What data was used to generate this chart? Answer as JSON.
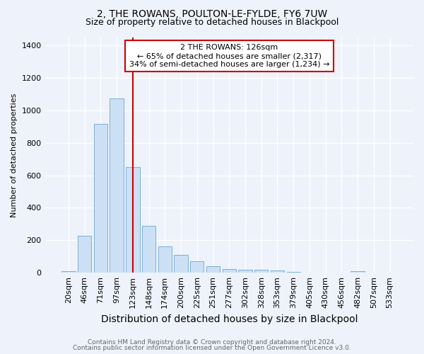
{
  "title1": "2, THE ROWANS, POULTON-LE-FYLDE, FY6 7UW",
  "title2": "Size of property relative to detached houses in Blackpool",
  "xlabel": "Distribution of detached houses by size in Blackpool",
  "ylabel": "Number of detached properties",
  "footer1": "Contains HM Land Registry data © Crown copyright and database right 2024.",
  "footer2": "Contains public sector information licensed under the Open Government Licence v3.0.",
  "categories": [
    "20sqm",
    "46sqm",
    "71sqm",
    "97sqm",
    "123sqm",
    "148sqm",
    "174sqm",
    "200sqm",
    "225sqm",
    "251sqm",
    "277sqm",
    "302sqm",
    "328sqm",
    "353sqm",
    "379sqm",
    "405sqm",
    "430sqm",
    "456sqm",
    "482sqm",
    "507sqm",
    "533sqm"
  ],
  "values": [
    10,
    228,
    915,
    1075,
    650,
    290,
    160,
    108,
    70,
    40,
    22,
    18,
    18,
    12,
    5,
    2,
    1,
    1,
    8,
    0,
    0
  ],
  "bar_color": "#cce0f5",
  "bar_edge_color": "#7bafd4",
  "highlight_index": 4,
  "highlight_line_color": "#cc0000",
  "annotation_text": "2 THE ROWANS: 126sqm\n← 65% of detached houses are smaller (2,317)\n34% of semi-detached houses are larger (1,234) →",
  "annotation_box_color": "#ffffff",
  "annotation_box_edge": "#cc0000",
  "ylim": [
    0,
    1450
  ],
  "yticks": [
    0,
    200,
    400,
    600,
    800,
    1000,
    1200,
    1400
  ],
  "bg_color": "#eef2fb",
  "plot_bg_color": "#eef2fb",
  "grid_color": "#ffffff",
  "title1_fontsize": 10,
  "title2_fontsize": 9,
  "ylabel_fontsize": 8,
  "xlabel_fontsize": 10,
  "tick_fontsize": 8,
  "annot_fontsize": 8,
  "footer_fontsize": 6.5,
  "footer_color": "#666666"
}
